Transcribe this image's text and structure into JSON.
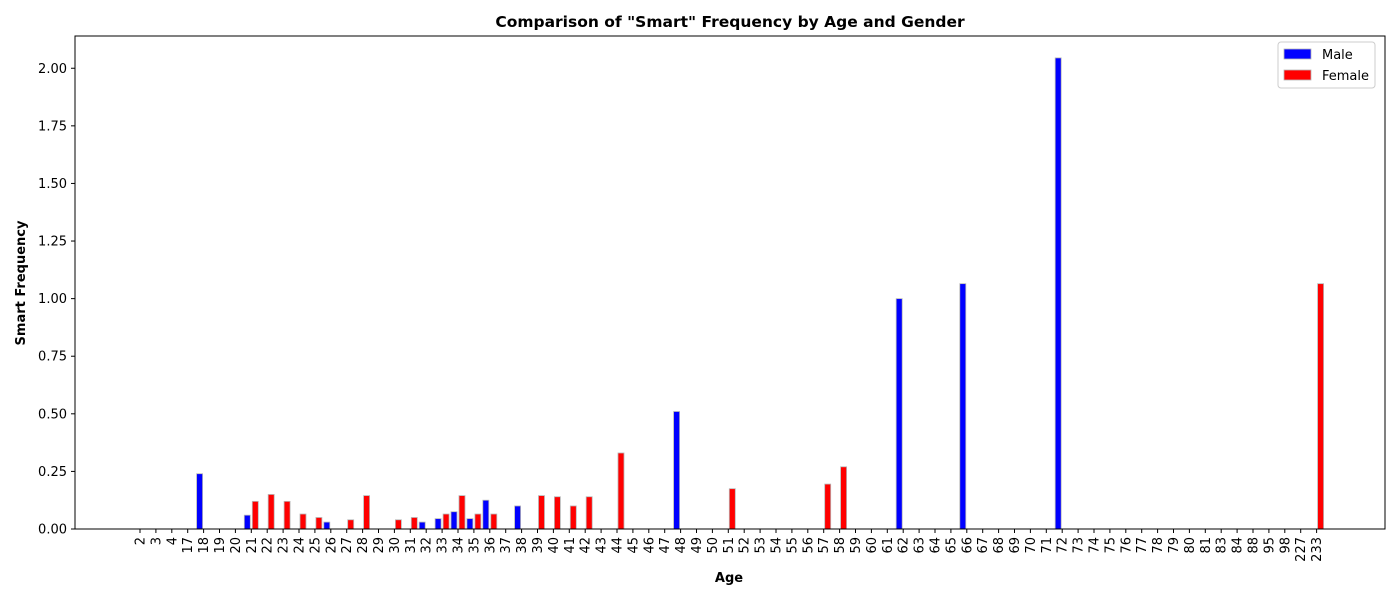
{
  "chart_data": {
    "type": "bar",
    "title": "Comparison of \"Smart\" Frequency by Age and Gender",
    "xlabel": "Age",
    "ylabel": "Smart Frequency",
    "ylim": [
      0,
      2.14
    ],
    "yticks": [
      "0.00",
      "0.25",
      "0.50",
      "0.75",
      "1.00",
      "1.25",
      "1.50",
      "1.75",
      "2.00"
    ],
    "legend_position": "top-right",
    "categories": [
      "2",
      "3",
      "4",
      "17",
      "18",
      "19",
      "20",
      "21",
      "22",
      "23",
      "24",
      "25",
      "26",
      "27",
      "28",
      "29",
      "30",
      "31",
      "32",
      "33",
      "34",
      "35",
      "36",
      "37",
      "38",
      "39",
      "40",
      "41",
      "42",
      "43",
      "44",
      "45",
      "46",
      "47",
      "48",
      "49",
      "50",
      "51",
      "52",
      "53",
      "54",
      "55",
      "56",
      "57",
      "58",
      "59",
      "60",
      "61",
      "62",
      "63",
      "64",
      "65",
      "66",
      "67",
      "68",
      "69",
      "70",
      "71",
      "72",
      "73",
      "74",
      "75",
      "76",
      "77",
      "78",
      "79",
      "80",
      "81",
      "83",
      "84",
      "88",
      "95",
      "98",
      "227",
      "233"
    ],
    "series": [
      {
        "name": "Male",
        "color": "#0000ff",
        "values": [
          0,
          0,
          0,
          0,
          0.24,
          0,
          0,
          0.06,
          0,
          0,
          0,
          0,
          0.03,
          0,
          0,
          0,
          0,
          0,
          0.03,
          0.045,
          0.075,
          0.045,
          0.125,
          0,
          0.1,
          0,
          0,
          0,
          0,
          0,
          0,
          0,
          0,
          0,
          0.51,
          0,
          0,
          0,
          0,
          0,
          0,
          0,
          0,
          0,
          0,
          0,
          0,
          0,
          1.0,
          0,
          0,
          0,
          1.065,
          0,
          0,
          0,
          0,
          0,
          2.045,
          0,
          0,
          0,
          0,
          0,
          0,
          0,
          0,
          0,
          0,
          0,
          0,
          0,
          0,
          0,
          0
        ]
      },
      {
        "name": "Female",
        "color": "#ff0000",
        "values": [
          0,
          0,
          0,
          0,
          0,
          0,
          0,
          0.12,
          0.15,
          0.12,
          0.065,
          0.05,
          0,
          0.04,
          0.145,
          0,
          0.04,
          0.05,
          0,
          0.065,
          0.145,
          0.065,
          0.065,
          0,
          0,
          0.145,
          0.14,
          0.1,
          0.14,
          0,
          0.33,
          0,
          0,
          0,
          0,
          0,
          0,
          0.175,
          0,
          0,
          0,
          0,
          0,
          0.195,
          0.27,
          0,
          0,
          0,
          0,
          0,
          0,
          0,
          0,
          0,
          0,
          0,
          0,
          0,
          0,
          0,
          0,
          0,
          0,
          0,
          0,
          0,
          0,
          0,
          0,
          0,
          0,
          0,
          0,
          0,
          1.065
        ]
      }
    ]
  }
}
